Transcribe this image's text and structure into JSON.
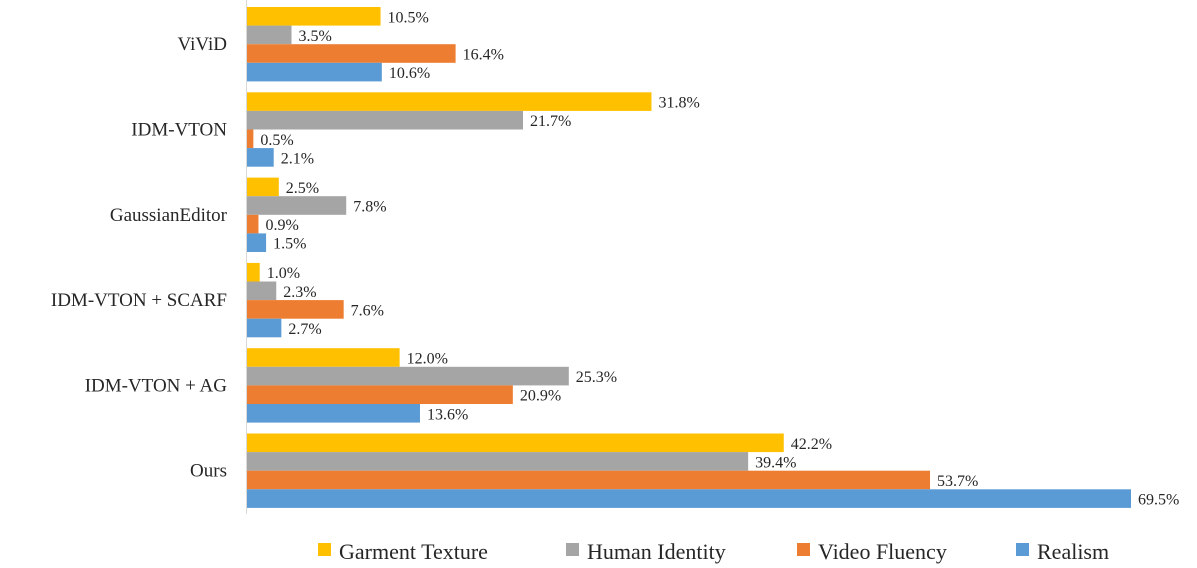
{
  "chart_data": {
    "type": "bar",
    "orientation": "horizontal",
    "categories": [
      "ViViD",
      "IDM-VTON",
      "GaussianEditor",
      "IDM-VTON + SCARF",
      "IDM-VTON + AG",
      "Ours"
    ],
    "series": [
      {
        "name": "Garment Texture",
        "color": "#FFC000",
        "values": [
          10.5,
          31.8,
          2.5,
          1.0,
          12.0,
          42.2
        ],
        "labels": [
          "10.5%",
          "31.8%",
          "2.5%",
          "1.0%",
          "12.0%",
          "42.2%"
        ]
      },
      {
        "name": "Human Identity",
        "color": "#A5A5A5",
        "values": [
          3.5,
          21.7,
          7.8,
          2.3,
          25.3,
          39.4
        ],
        "labels": [
          "3.5%",
          "21.7%",
          "7.8%",
          "2.3%",
          "25.3%",
          "39.4%"
        ]
      },
      {
        "name": "Video Fluency",
        "color": "#ED7D31",
        "values": [
          16.4,
          0.5,
          0.9,
          7.6,
          20.9,
          53.7
        ],
        "labels": [
          "16.4%",
          "0.5%",
          "0.9%",
          "7.6%",
          "20.9%",
          "53.7%"
        ]
      },
      {
        "name": "Realism",
        "color": "#5B9BD5",
        "values": [
          10.6,
          2.1,
          1.5,
          2.7,
          13.6,
          69.5
        ],
        "labels": [
          "10.6%",
          "2.1%",
          "1.5%",
          "2.7%",
          "13.6%",
          "69.5%"
        ]
      }
    ],
    "xlim": [
      0,
      70
    ],
    "value_unit": "%",
    "grid": false,
    "legend_position": "bottom"
  }
}
